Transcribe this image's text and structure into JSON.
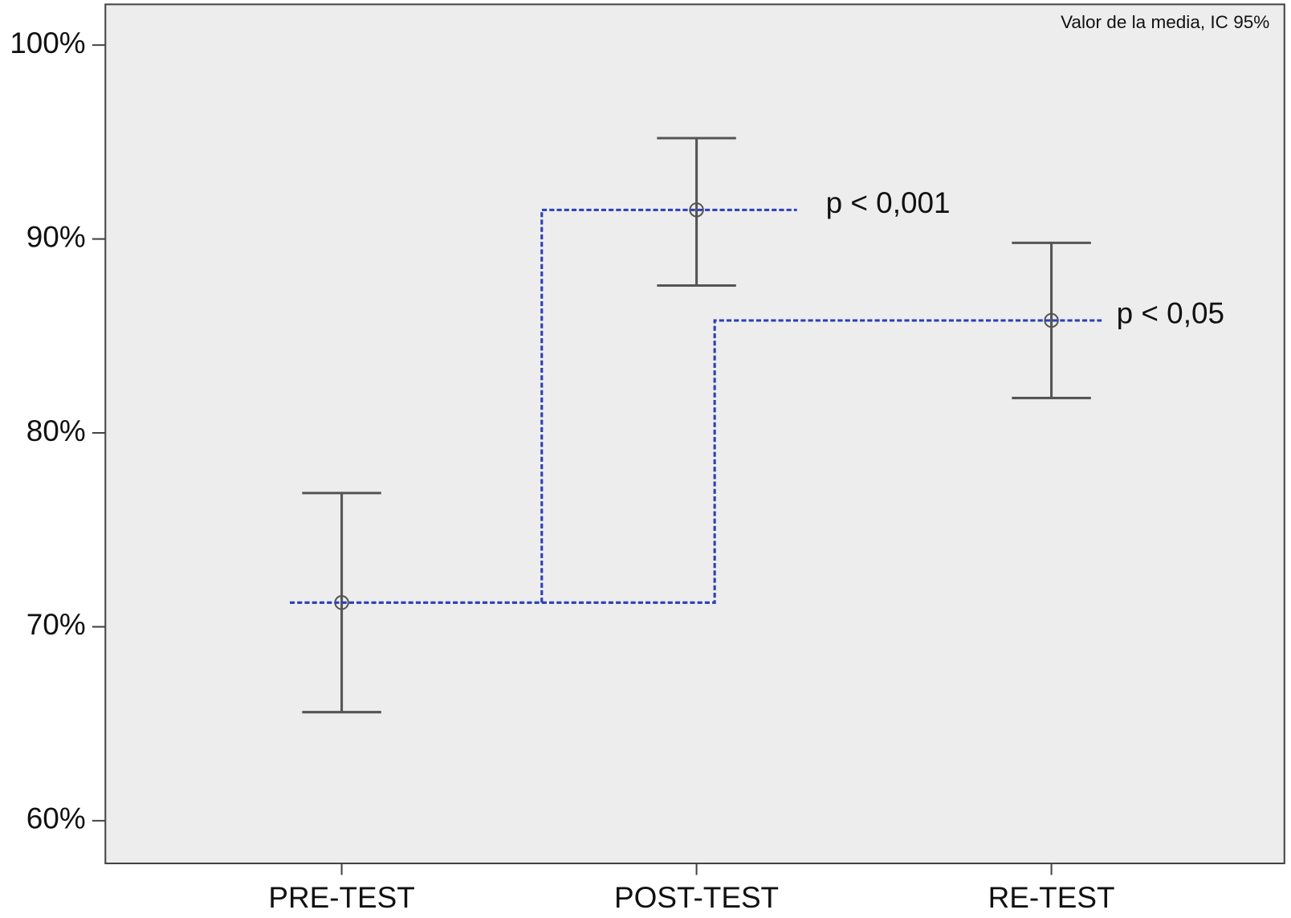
{
  "chart_data": {
    "type": "errorbar",
    "subtitle": "Valor de la media, IC 95%",
    "categories": [
      "PRE-TEST",
      "POST-TEST",
      "RE-TEST"
    ],
    "series": [
      {
        "color": "#555555",
        "values": [
          71.25,
          91.5,
          85.8
        ],
        "lower": [
          65.6,
          87.6,
          81.8
        ],
        "upper": [
          76.9,
          95.2,
          89.8
        ]
      }
    ],
    "annotations": [
      "p < 0,001",
      "p < 0,05"
    ],
    "annotation_color": "#2b3fb5",
    "ylim": [
      57.8,
      102.1
    ],
    "yticks": [
      {
        "value": 60,
        "label": "60%"
      },
      {
        "value": 70,
        "label": "70%"
      },
      {
        "value": 80,
        "label": "80%"
      },
      {
        "value": 90,
        "label": "90%"
      },
      {
        "value": 100,
        "label": "100%"
      }
    ],
    "grid": false
  }
}
